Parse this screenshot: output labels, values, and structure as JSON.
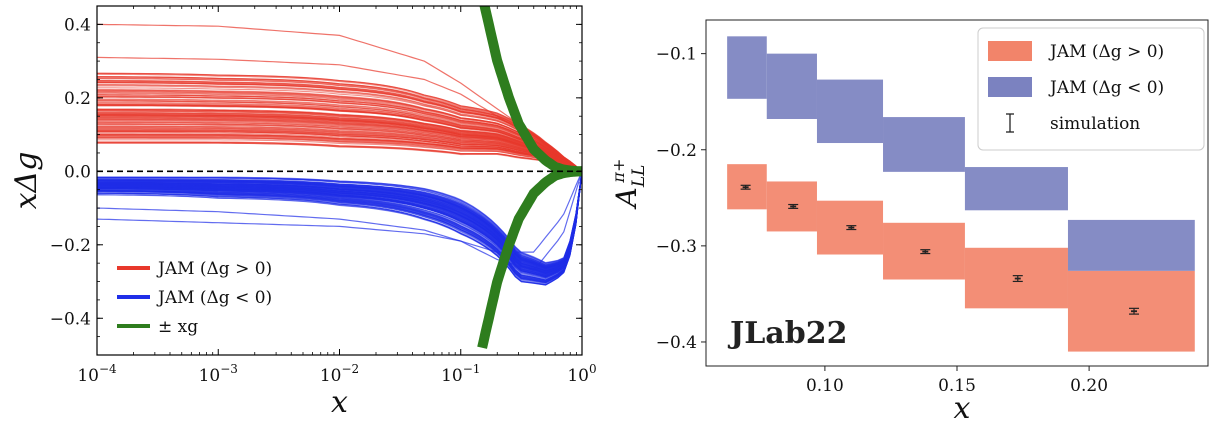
{
  "chart_data": [
    {
      "type": "line",
      "xlabel": "x",
      "ylabel": "xΔg",
      "xscale": "log",
      "xlim": [
        0.0001,
        1
      ],
      "ylim": [
        -0.5,
        0.45
      ],
      "x_ticks": [
        0.0001,
        0.001,
        0.01,
        0.1,
        1
      ],
      "x_tick_labels": [
        "10",
        "10",
        "10",
        "10",
        "10"
      ],
      "x_tick_exponents": [
        "−4",
        "−3",
        "−2",
        "−1",
        "0"
      ],
      "y_ticks": [
        -0.4,
        -0.2,
        0.0,
        0.2,
        0.4
      ],
      "y_tick_labels": [
        "−0.4",
        "−0.2",
        "0.0",
        "0.2",
        "0.4"
      ],
      "zero_line": "dashed",
      "legend_position": "lower-left",
      "series": [
        {
          "name": "JAM (Δg > 0)",
          "color": "#e8382b",
          "band_x": [
            0.0001,
            0.001,
            0.01,
            0.05,
            0.1,
            0.2,
            0.3,
            0.5,
            0.7,
            1.0
          ],
          "band_upper": [
            0.27,
            0.265,
            0.25,
            0.21,
            0.18,
            0.16,
            0.13,
            0.08,
            0.04,
            0.0
          ],
          "band_lower": [
            0.08,
            0.08,
            0.07,
            0.06,
            0.05,
            0.05,
            0.04,
            0.03,
            0.02,
            0.0
          ],
          "outlier_curves": [
            {
              "x": [
                0.0001,
                0.001,
                0.01,
                0.05,
                0.1,
                0.2,
                0.4,
                0.7,
                1.0
              ],
              "y": [
                0.4,
                0.395,
                0.37,
                0.3,
                0.24,
                0.17,
                0.1,
                0.04,
                0.0
              ]
            },
            {
              "x": [
                0.0001,
                0.001,
                0.01,
                0.05,
                0.1,
                0.2,
                0.4,
                0.7,
                1.0
              ],
              "y": [
                0.31,
                0.305,
                0.29,
                0.25,
                0.21,
                0.15,
                0.09,
                0.04,
                0.0
              ]
            }
          ]
        },
        {
          "name": "JAM (Δg < 0)",
          "color": "#1f2ee8",
          "band_x": [
            0.0001,
            0.001,
            0.01,
            0.05,
            0.1,
            0.2,
            0.3,
            0.5,
            0.7,
            0.85,
            1.0
          ],
          "band_upper": [
            -0.02,
            -0.02,
            -0.03,
            -0.05,
            -0.08,
            -0.15,
            -0.22,
            -0.25,
            -0.24,
            -0.16,
            0.0
          ],
          "band_lower": [
            -0.06,
            -0.07,
            -0.09,
            -0.13,
            -0.17,
            -0.23,
            -0.3,
            -0.31,
            -0.28,
            -0.2,
            0.0
          ],
          "outlier_curves": [
            {
              "x": [
                0.0001,
                0.001,
                0.01,
                0.05,
                0.1,
                0.2,
                0.4,
                0.7,
                1.0
              ],
              "y": [
                -0.13,
                -0.14,
                -0.15,
                -0.17,
                -0.19,
                -0.22,
                -0.22,
                -0.12,
                0.0
              ]
            },
            {
              "x": [
                0.0001,
                0.001,
                0.01,
                0.05,
                0.1,
                0.2,
                0.4,
                0.7,
                1.0
              ],
              "y": [
                -0.1,
                -0.11,
                -0.13,
                -0.16,
                -0.19,
                -0.24,
                -0.27,
                -0.17,
                0.0
              ]
            }
          ]
        },
        {
          "name": "± xg",
          "color": "#2e7d1e",
          "curve_x": [
            0.15,
            0.2,
            0.25,
            0.3,
            0.4,
            0.5,
            0.6,
            0.7,
            0.8,
            0.9,
            1.0
          ],
          "curve_y": [
            0.48,
            0.3,
            0.2,
            0.13,
            0.06,
            0.03,
            0.012,
            0.005,
            0.002,
            0.0005,
            0.0
          ]
        }
      ]
    },
    {
      "type": "bar",
      "subtype": "uncertainty-bands",
      "ylabel_base": "A",
      "ylabel_sup": "π+",
      "ylabel_sub": "LL",
      "xlabel": "x",
      "xlim": [
        0.055,
        0.245
      ],
      "ylim": [
        -0.425,
        -0.065
      ],
      "x_ticks": [
        0.1,
        0.15,
        0.2
      ],
      "x_tick_labels": [
        "0.10",
        "0.15",
        "0.20"
      ],
      "y_ticks": [
        -0.1,
        -0.2,
        -0.3,
        -0.4
      ],
      "y_tick_labels": [
        "−0.1",
        "−0.2",
        "−0.3",
        "−0.4"
      ],
      "annotation": "JLab22",
      "legend_position": "top-right",
      "bins": [
        [
          0.063,
          0.078
        ],
        [
          0.078,
          0.097
        ],
        [
          0.097,
          0.122
        ],
        [
          0.122,
          0.153
        ],
        [
          0.153,
          0.192
        ],
        [
          0.192,
          0.24
        ]
      ],
      "series": [
        {
          "name": "JAM (Δg > 0)",
          "color": "#f2846a",
          "low": [
            -0.262,
            -0.285,
            -0.309,
            -0.335,
            -0.365,
            -0.41
          ],
          "high": [
            -0.215,
            -0.233,
            -0.253,
            -0.276,
            -0.302,
            -0.326
          ]
        },
        {
          "name": "JAM (Δg < 0)",
          "color": "#7b82c0",
          "low": [
            -0.147,
            -0.168,
            -0.193,
            -0.223,
            -0.263,
            -0.326
          ],
          "high": [
            -0.082,
            -0.1,
            -0.127,
            -0.166,
            -0.218,
            -0.273
          ]
        },
        {
          "name": "simulation",
          "color": "#222222",
          "x": [
            0.07,
            0.088,
            0.11,
            0.138,
            0.173,
            0.217
          ],
          "y": [
            -0.239,
            -0.259,
            -0.281,
            -0.306,
            -0.334,
            -0.368
          ],
          "err": [
            0.002,
            0.002,
            0.002,
            0.002,
            0.003,
            0.003
          ]
        }
      ]
    }
  ]
}
